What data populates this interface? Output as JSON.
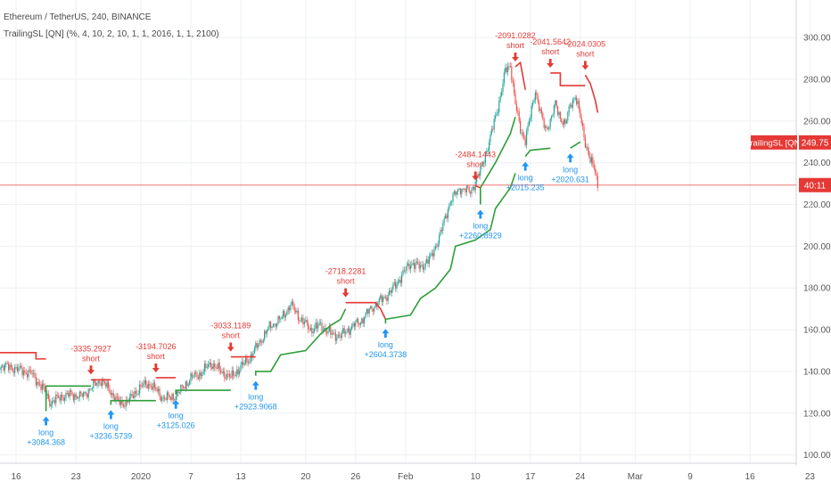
{
  "legend": {
    "symbol_line": "Ethereum / TetherUS, 240, BINANCE",
    "indicator_line": "TrailingSL [QN] (%, 4, 10, 2, 10, 1, 1, 2016, 1, 1, 2100)"
  },
  "badges": {
    "indicator_label": "TrailingSL [QN]",
    "indicator_value": "249.75",
    "countdown": "40:11"
  },
  "colors": {
    "up_candle": "#26a69a",
    "down_candle": "#ef5350",
    "stop_long": "#2e9e3a",
    "stop_short": "#e53935",
    "long_marker": "#2196f3",
    "short_marker": "#e53935",
    "price_line": "#ef5350"
  },
  "chart_data": {
    "type": "candlestick",
    "y_ticks": [
      "100.00",
      "120.00",
      "140.00",
      "160.00",
      "180.00",
      "200.00",
      "220.00",
      "240.00",
      "260.00",
      "280.00",
      "300.00"
    ],
    "ylim": [
      96,
      318
    ],
    "x_ticks": [
      "16",
      "23",
      "2020",
      "7",
      "13",
      "20",
      "26",
      "Feb",
      "10",
      "17",
      "24",
      "Mar",
      "9",
      "16",
      "23"
    ],
    "current_price": 229.3,
    "price_path": [
      [
        0,
        143
      ],
      [
        4,
        142
      ],
      [
        8,
        139
      ],
      [
        10,
        133
      ],
      [
        12,
        125
      ],
      [
        14,
        128
      ],
      [
        16,
        129
      ],
      [
        18,
        128
      ],
      [
        20,
        132
      ],
      [
        22,
        136
      ],
      [
        24,
        130
      ],
      [
        26,
        124
      ],
      [
        28,
        127
      ],
      [
        30,
        133
      ],
      [
        32,
        134
      ],
      [
        34,
        128
      ],
      [
        36,
        127
      ],
      [
        38,
        131
      ],
      [
        40,
        137
      ],
      [
        42,
        139
      ],
      [
        44,
        144
      ],
      [
        46,
        140
      ],
      [
        48,
        137
      ],
      [
        50,
        142
      ],
      [
        52,
        147
      ],
      [
        54,
        155
      ],
      [
        56,
        162
      ],
      [
        58,
        165
      ],
      [
        60,
        172
      ],
      [
        62,
        165
      ],
      [
        64,
        160
      ],
      [
        66,
        162
      ],
      [
        68,
        158
      ],
      [
        70,
        157
      ],
      [
        72,
        161
      ],
      [
        74,
        164
      ],
      [
        76,
        170
      ],
      [
        78,
        174
      ],
      [
        80,
        178
      ],
      [
        82,
        185
      ],
      [
        84,
        192
      ],
      [
        86,
        190
      ],
      [
        88,
        194
      ],
      [
        90,
        206
      ],
      [
        92,
        222
      ],
      [
        94,
        228
      ],
      [
        96,
        226
      ],
      [
        98,
        236
      ],
      [
        100,
        252
      ],
      [
        101,
        262
      ],
      [
        102,
        272
      ],
      [
        103,
        284
      ],
      [
        104,
        287
      ],
      [
        105,
        268
      ],
      [
        106,
        256
      ],
      [
        107,
        251
      ],
      [
        108,
        262
      ],
      [
        109,
        275
      ],
      [
        110,
        264
      ],
      [
        111,
        256
      ],
      [
        112,
        260
      ],
      [
        113,
        268
      ],
      [
        114,
        262
      ],
      [
        115,
        258
      ],
      [
        116,
        268
      ],
      [
        117,
        272
      ],
      [
        118,
        262
      ],
      [
        119,
        250
      ],
      [
        120,
        241
      ],
      [
        121,
        236
      ],
      [
        121.5,
        229.3
      ]
    ],
    "stop_segments": [
      {
        "dir": "short",
        "points": [
          [
            0,
            149
          ],
          [
            9,
            149
          ],
          [
            9,
            146
          ],
          [
            11,
            146
          ]
        ]
      },
      {
        "dir": "long",
        "points": [
          [
            11,
            121
          ],
          [
            11,
            133
          ],
          [
            20,
            133
          ]
        ]
      },
      {
        "dir": "short",
        "points": [
          [
            20,
            136
          ],
          [
            24,
            136
          ]
        ]
      },
      {
        "dir": "long",
        "points": [
          [
            24,
            124
          ],
          [
            24,
            126
          ],
          [
            33,
            126
          ]
        ]
      },
      {
        "dir": "short",
        "points": [
          [
            33,
            137
          ],
          [
            37,
            137
          ]
        ]
      },
      {
        "dir": "long",
        "points": [
          [
            37,
            129
          ],
          [
            37,
            131
          ],
          [
            48,
            131
          ]
        ]
      },
      {
        "dir": "short",
        "points": [
          [
            48,
            147
          ],
          [
            53,
            147
          ]
        ]
      },
      {
        "dir": "long",
        "points": [
          [
            53,
            138
          ],
          [
            53,
            140
          ],
          [
            56,
            140
          ],
          [
            58,
            148
          ],
          [
            63,
            150
          ],
          [
            66,
            158
          ],
          [
            68,
            162
          ],
          [
            70,
            165
          ],
          [
            71,
            170
          ]
        ]
      },
      {
        "dir": "short",
        "points": [
          [
            71,
            173
          ],
          [
            77,
            173
          ],
          [
            78,
            170
          ],
          [
            79,
            165
          ]
        ]
      },
      {
        "dir": "long",
        "points": [
          [
            79,
            163
          ],
          [
            79,
            165
          ],
          [
            84,
            167
          ],
          [
            86,
            175
          ],
          [
            89,
            180
          ],
          [
            92,
            189
          ],
          [
            93,
            200
          ],
          [
            97,
            203
          ],
          [
            100,
            208
          ],
          [
            101,
            218
          ],
          [
            104,
            228
          ],
          [
            105,
            235
          ]
        ]
      },
      {
        "dir": "short",
        "points": [
          [
            97,
            229
          ],
          [
            98,
            228
          ]
        ]
      },
      {
        "dir": "long",
        "points": [
          [
            98,
            220
          ],
          [
            98,
            228
          ],
          [
            101,
            240
          ],
          [
            104,
            254
          ],
          [
            105,
            262
          ]
        ]
      },
      {
        "dir": "short",
        "points": [
          [
            105,
            286
          ],
          [
            106,
            288
          ],
          [
            107,
            275
          ]
        ]
      },
      {
        "dir": "long",
        "points": [
          [
            107,
            243
          ],
          [
            108,
            246
          ],
          [
            112,
            247
          ]
        ]
      },
      {
        "dir": "short",
        "points": [
          [
            112,
            283
          ],
          [
            114,
            283
          ],
          [
            114,
            277
          ],
          [
            119,
            277
          ]
        ]
      },
      {
        "dir": "long",
        "points": [
          [
            116,
            247
          ],
          [
            118,
            250
          ]
        ]
      },
      {
        "dir": "short",
        "points": [
          [
            119,
            282
          ],
          [
            120,
            278
          ],
          [
            121,
            270
          ],
          [
            121.5,
            264
          ]
        ]
      }
    ],
    "signals": [
      {
        "type": "long",
        "x": 11,
        "price": 121,
        "label": "long",
        "value": "+3084.368"
      },
      {
        "type": "short",
        "x": 20,
        "price": 136,
        "label": "short",
        "value": "-3335.2927"
      },
      {
        "type": "long",
        "x": 24,
        "price": 124,
        "label": "long",
        "value": "+3236.5739"
      },
      {
        "type": "short",
        "x": 33,
        "price": 137,
        "label": "short",
        "value": "-3194.7026"
      },
      {
        "type": "long",
        "x": 37,
        "price": 129,
        "label": "long",
        "value": "+3125.026"
      },
      {
        "type": "short",
        "x": 48,
        "price": 147,
        "label": "short",
        "value": "-3033.1189"
      },
      {
        "type": "long",
        "x": 53,
        "price": 138,
        "label": "long",
        "value": "+2923.9068"
      },
      {
        "type": "short",
        "x": 71,
        "price": 173,
        "label": "short",
        "value": "-2718.2281"
      },
      {
        "type": "long",
        "x": 79,
        "price": 163,
        "label": "long",
        "value": "+2604.3738"
      },
      {
        "type": "short",
        "x": 97,
        "price": 229,
        "label": "short",
        "value": "-2484.1443"
      },
      {
        "type": "long",
        "x": 98,
        "price": 220,
        "label": "long",
        "value": "+2260.8929"
      },
      {
        "type": "short",
        "x": 105,
        "price": 286,
        "label": "short",
        "value": "-2091.0282"
      },
      {
        "type": "long",
        "x": 107,
        "price": 243,
        "label": "long",
        "value": "+2015.235"
      },
      {
        "type": "short",
        "x": 112,
        "price": 283,
        "label": "short",
        "value": "-2041.5642"
      },
      {
        "type": "long",
        "x": 116,
        "price": 247,
        "label": "long",
        "value": "+2020.631"
      },
      {
        "type": "short",
        "x": 119,
        "price": 282,
        "label": "short",
        "value": "-2024.0305"
      }
    ]
  }
}
